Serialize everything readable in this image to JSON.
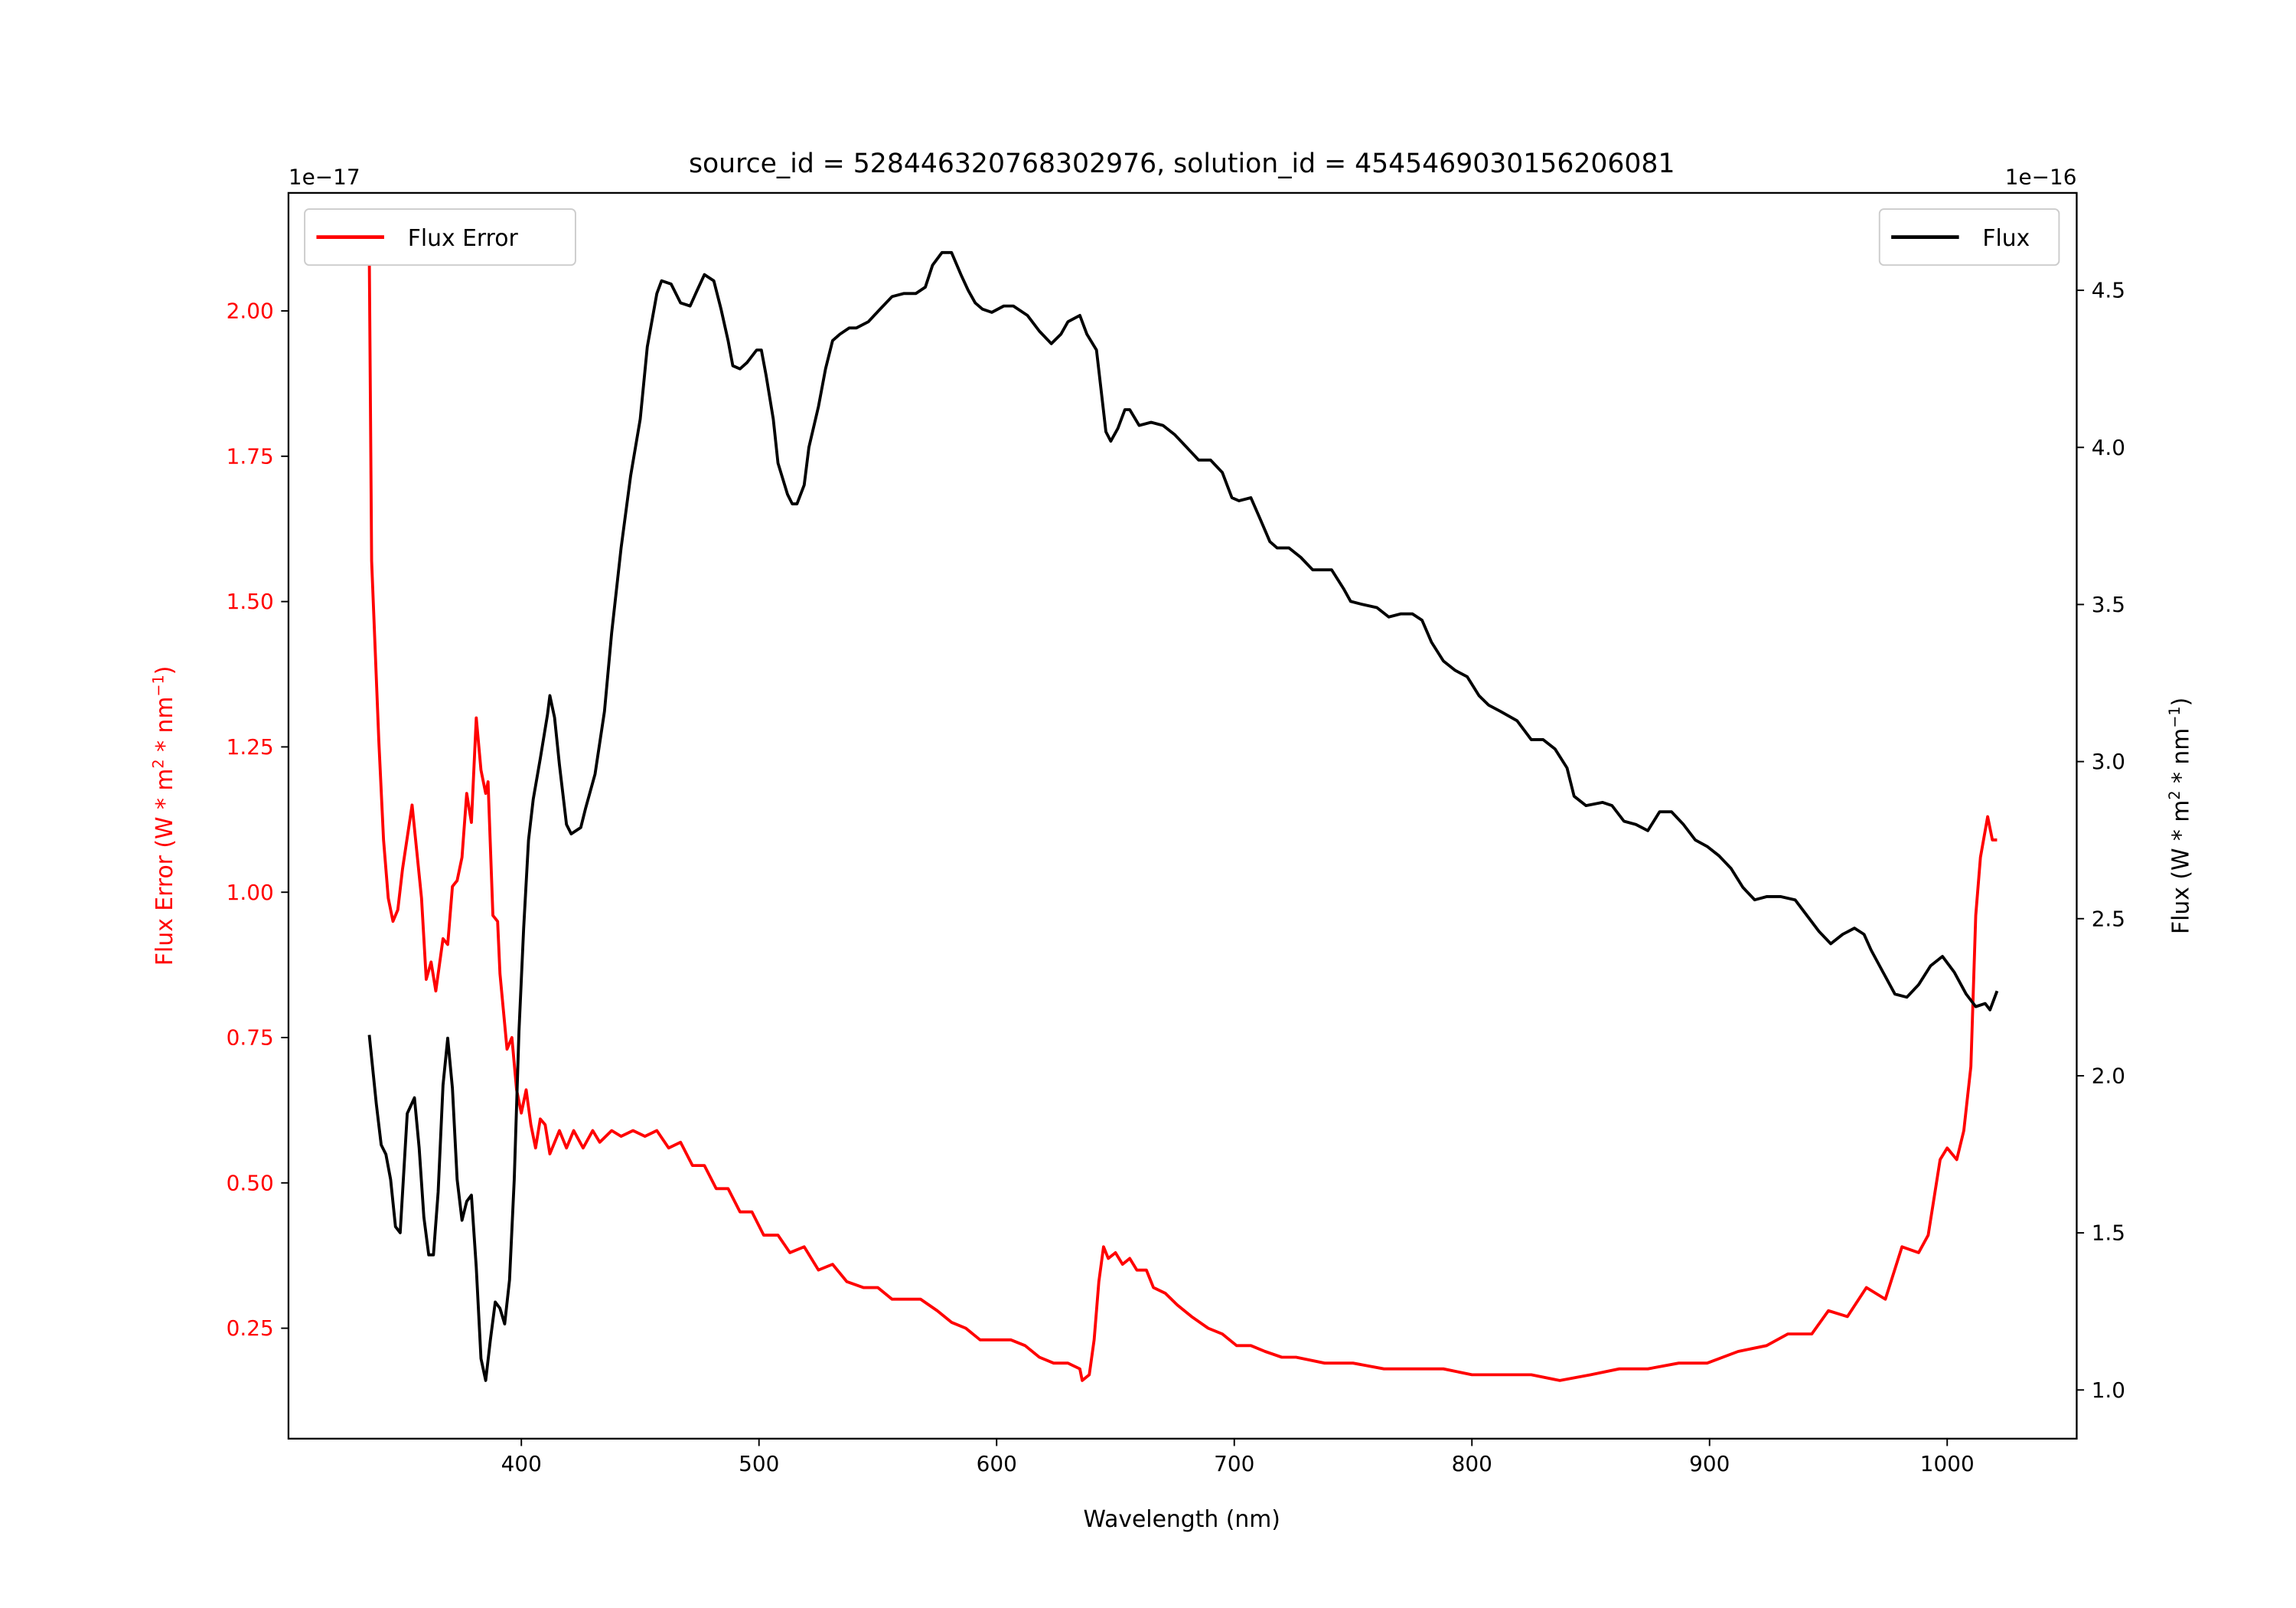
{
  "chart_data": {
    "type": "line",
    "title": "source_id = 528446320768302976, solution_id = 4545469030156206081",
    "xlabel": "Wavelength (nm)",
    "ylabel_left": "Flux Error (W * m$^2$ * nm$^{-1}$)",
    "ylabel_left_text": [
      "Flux Error (W * m",
      "2",
      " * nm",
      "−1",
      ")"
    ],
    "ylabel_right_text": [
      "Flux (W * m",
      "2",
      " * nm",
      "−1",
      ")"
    ],
    "offset_left": "1e−17",
    "offset_right": "1e−16",
    "xlim": [
      302,
      1054.5
    ],
    "ylim_left": [
      0.06,
      2.203
    ],
    "ylim_right": [
      0.845,
      4.81
    ],
    "xticks": [
      400,
      500,
      600,
      700,
      800,
      900,
      1000
    ],
    "yticks_left": [
      "0.25",
      "0.50",
      "0.75",
      "1.00",
      "1.25",
      "1.50",
      "1.75",
      "2.00"
    ],
    "yticks_right": [
      "1.0",
      "1.5",
      "2.0",
      "2.5",
      "3.0",
      "3.5",
      "4.0",
      "4.5"
    ],
    "grid": false,
    "legend": [
      {
        "label": "Flux Error",
        "placement": "upper-left",
        "color": "#ff0000"
      },
      {
        "label": "Flux",
        "placement": "upper-right",
        "color": "#000000"
      }
    ],
    "series": [
      {
        "name": "Flux Error",
        "axis": "left",
        "color": "#ff0000",
        "x": [
          336,
          337,
          340,
          342,
          344,
          346,
          348,
          350,
          354,
          358,
          360,
          362,
          364,
          367,
          369,
          371,
          373,
          375,
          377,
          379,
          381,
          383,
          385,
          386,
          388,
          390,
          391,
          394,
          396,
          398,
          400,
          402,
          404,
          406,
          408,
          410,
          412,
          416,
          419,
          422,
          426,
          430,
          433,
          438,
          442,
          447,
          452,
          457,
          462,
          467,
          472,
          477,
          482,
          487,
          492,
          497,
          502,
          508,
          513,
          519,
          525,
          531,
          537,
          544,
          550,
          556,
          562,
          568,
          575,
          581,
          587,
          593,
          599,
          606,
          612,
          618,
          624,
          630,
          635,
          636,
          639,
          641,
          643,
          645,
          647,
          650,
          653,
          656,
          659,
          663,
          666,
          671,
          676,
          682,
          689,
          695,
          701,
          707,
          713,
          720,
          726,
          738,
          750,
          763,
          775,
          788,
          800,
          812,
          825,
          837,
          850,
          862,
          874,
          887,
          899,
          912,
          924,
          933,
          943,
          950,
          958,
          966,
          974,
          981,
          988,
          992,
          997,
          1000,
          1004,
          1007,
          1010,
          1012,
          1014,
          1017,
          1019,
          1021
        ],
        "y": [
          2.1,
          1.57,
          1.26,
          1.09,
          0.99,
          0.95,
          0.97,
          1.04,
          1.15,
          0.99,
          0.85,
          0.88,
          0.83,
          0.92,
          0.91,
          1.01,
          1.02,
          1.06,
          1.17,
          1.12,
          1.3,
          1.21,
          1.17,
          1.19,
          0.96,
          0.95,
          0.86,
          0.73,
          0.75,
          0.66,
          0.62,
          0.66,
          0.6,
          0.56,
          0.61,
          0.6,
          0.55,
          0.59,
          0.56,
          0.59,
          0.56,
          0.59,
          0.57,
          0.59,
          0.58,
          0.59,
          0.58,
          0.59,
          0.56,
          0.57,
          0.53,
          0.53,
          0.49,
          0.49,
          0.45,
          0.45,
          0.41,
          0.41,
          0.38,
          0.39,
          0.35,
          0.36,
          0.33,
          0.32,
          0.32,
          0.3,
          0.3,
          0.3,
          0.28,
          0.26,
          0.25,
          0.23,
          0.23,
          0.23,
          0.22,
          0.2,
          0.19,
          0.19,
          0.18,
          0.16,
          0.17,
          0.23,
          0.33,
          0.39,
          0.37,
          0.38,
          0.36,
          0.37,
          0.35,
          0.35,
          0.32,
          0.31,
          0.29,
          0.27,
          0.25,
          0.24,
          0.22,
          0.22,
          0.21,
          0.2,
          0.2,
          0.19,
          0.19,
          0.18,
          0.18,
          0.18,
          0.17,
          0.17,
          0.17,
          0.16,
          0.17,
          0.18,
          0.18,
          0.19,
          0.19,
          0.21,
          0.22,
          0.24,
          0.24,
          0.28,
          0.27,
          0.32,
          0.3,
          0.39,
          0.38,
          0.41,
          0.54,
          0.56,
          0.54,
          0.59,
          0.7,
          0.96,
          1.06,
          1.13,
          1.09,
          1.09
        ]
      },
      {
        "name": "Flux",
        "axis": "right",
        "color": "#000000",
        "x": [
          336,
          339,
          341,
          343,
          345,
          347,
          349,
          352,
          355,
          357,
          359,
          361,
          363,
          365,
          367,
          369,
          371,
          373,
          375,
          377,
          379,
          381,
          383,
          385,
          387,
          389,
          391,
          393,
          395,
          397,
          399,
          401,
          403,
          405,
          408,
          411,
          412,
          414,
          416,
          419,
          421,
          425,
          427,
          431,
          435,
          438,
          442,
          446,
          450,
          453,
          457,
          459,
          463,
          467,
          471,
          474,
          477,
          481,
          484,
          487,
          489,
          492,
          495,
          499,
          501,
          503,
          506,
          508,
          512,
          514,
          516,
          519,
          521,
          525,
          528,
          531,
          534,
          538,
          541,
          546,
          551,
          556,
          561,
          566,
          570,
          573,
          577,
          581,
          585,
          588,
          591,
          594,
          598,
          603,
          607,
          613,
          618,
          623,
          627,
          630,
          635,
          638,
          642,
          644,
          646,
          648,
          651,
          654,
          656,
          660,
          665,
          670,
          675,
          680,
          685,
          690,
          695,
          699,
          702,
          707,
          711,
          715,
          718,
          723,
          728,
          733,
          741,
          746,
          749,
          754,
          760,
          765,
          770,
          775,
          779,
          783,
          788,
          793,
          798,
          803,
          807,
          812,
          819,
          825,
          830,
          835,
          840,
          843,
          848,
          855,
          859,
          864,
          869,
          874,
          879,
          884,
          889,
          894,
          899,
          904,
          909,
          914,
          919,
          924,
          930,
          936,
          941,
          946,
          951,
          956,
          961,
          965,
          968,
          973,
          978,
          983,
          988,
          993,
          998,
          1003,
          1008,
          1012,
          1016,
          1018,
          1021
        ],
        "y": [
          2.13,
          1.91,
          1.78,
          1.75,
          1.67,
          1.52,
          1.5,
          1.88,
          1.93,
          1.77,
          1.55,
          1.43,
          1.43,
          1.63,
          1.97,
          2.12,
          1.96,
          1.67,
          1.54,
          1.6,
          1.62,
          1.39,
          1.1,
          1.03,
          1.16,
          1.28,
          1.26,
          1.21,
          1.35,
          1.67,
          2.14,
          2.47,
          2.75,
          2.88,
          3.01,
          3.15,
          3.21,
          3.14,
          2.99,
          2.8,
          2.77,
          2.79,
          2.85,
          2.96,
          3.16,
          3.41,
          3.68,
          3.91,
          4.09,
          4.32,
          4.49,
          4.53,
          4.52,
          4.46,
          4.45,
          4.5,
          4.55,
          4.53,
          4.44,
          4.34,
          4.26,
          4.25,
          4.27,
          4.31,
          4.31,
          4.23,
          4.09,
          3.95,
          3.85,
          3.82,
          3.82,
          3.88,
          4.0,
          4.13,
          4.25,
          4.34,
          4.36,
          4.38,
          4.38,
          4.4,
          4.44,
          4.48,
          4.49,
          4.49,
          4.51,
          4.58,
          4.62,
          4.62,
          4.55,
          4.5,
          4.46,
          4.44,
          4.43,
          4.45,
          4.45,
          4.42,
          4.37,
          4.33,
          4.36,
          4.4,
          4.42,
          4.36,
          4.31,
          4.18,
          4.05,
          4.02,
          4.06,
          4.12,
          4.12,
          4.07,
          4.08,
          4.07,
          4.04,
          4.0,
          3.96,
          3.96,
          3.92,
          3.84,
          3.83,
          3.84,
          3.77,
          3.7,
          3.68,
          3.68,
          3.65,
          3.61,
          3.61,
          3.55,
          3.51,
          3.5,
          3.49,
          3.46,
          3.47,
          3.47,
          3.45,
          3.38,
          3.32,
          3.29,
          3.27,
          3.21,
          3.18,
          3.16,
          3.13,
          3.07,
          3.07,
          3.04,
          2.98,
          2.89,
          2.86,
          2.87,
          2.86,
          2.81,
          2.8,
          2.78,
          2.84,
          2.84,
          2.8,
          2.75,
          2.73,
          2.7,
          2.66,
          2.6,
          2.56,
          2.57,
          2.57,
          2.56,
          2.51,
          2.46,
          2.42,
          2.45,
          2.47,
          2.45,
          2.4,
          2.33,
          2.26,
          2.25,
          2.29,
          2.35,
          2.38,
          2.33,
          2.26,
          2.22,
          2.23,
          2.21,
          2.27
        ]
      }
    ]
  }
}
